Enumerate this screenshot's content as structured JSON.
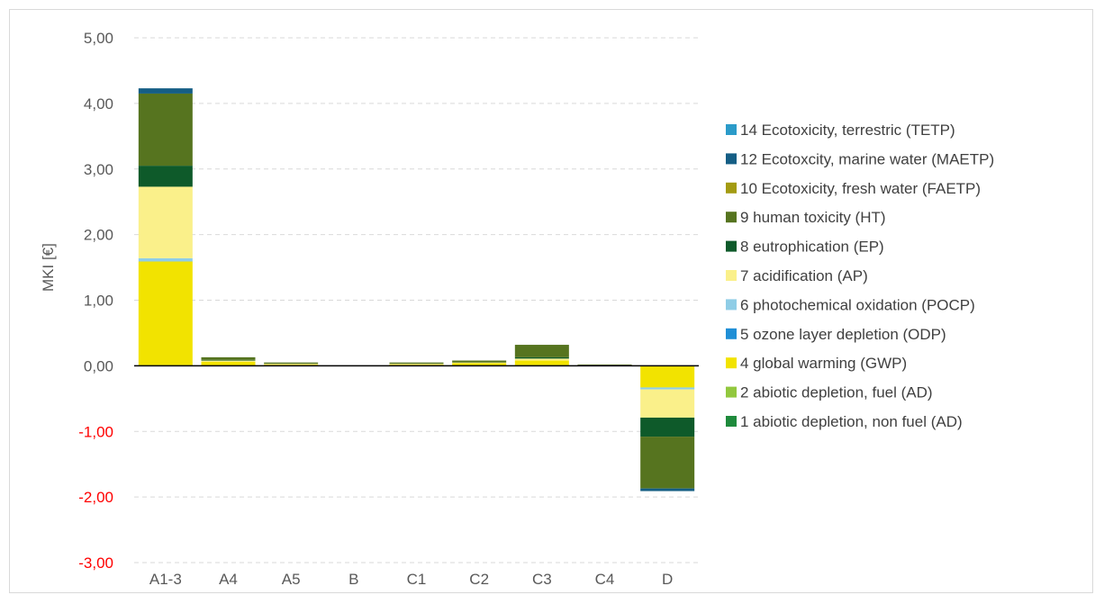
{
  "chart_data": {
    "type": "bar",
    "stacked": true,
    "ylabel": "MKI [€]",
    "ylim": [
      -3,
      5
    ],
    "yticks": [
      {
        "value": 5,
        "label": "5,00"
      },
      {
        "value": 4,
        "label": "4,00"
      },
      {
        "value": 3,
        "label": "3,00"
      },
      {
        "value": 2,
        "label": "2,00"
      },
      {
        "value": 1,
        "label": "1,00"
      },
      {
        "value": 0,
        "label": "0,00"
      },
      {
        "value": -1,
        "label": "-1,00"
      },
      {
        "value": -2,
        "label": "-2,00"
      },
      {
        "value": -3,
        "label": "-3,00"
      }
    ],
    "negative_tick_color": "#ff0000",
    "positive_tick_color": "#595959",
    "grid": "horizontal dashed",
    "legend_position": "right",
    "categories": [
      "A1-3",
      "A4",
      "A5",
      "B",
      "C1",
      "C2",
      "C3",
      "C4",
      "D"
    ],
    "series": [
      {
        "name": "1 abiotic depletion, non fuel (AD)",
        "color": "#1e8a3c",
        "values": [
          0,
          0,
          0,
          0,
          0,
          0,
          0,
          0,
          0
        ]
      },
      {
        "name": "2 abiotic depletion, fuel (AD)",
        "color": "#92c83e",
        "values": [
          0.01,
          0,
          0,
          0,
          0,
          0,
          0.01,
          0,
          0
        ]
      },
      {
        "name": "4 global warming (GWP)",
        "color": "#f2e300",
        "values": [
          1.58,
          0.06,
          0.02,
          0,
          0.02,
          0.04,
          0.07,
          0.01,
          -0.33
        ]
      },
      {
        "name": "5 ozone layer depletion (ODP)",
        "color": "#1f8fd6",
        "values": [
          0,
          0,
          0,
          0,
          0,
          0,
          0,
          0,
          0
        ]
      },
      {
        "name": "6 photochemical oxidation (POCP)",
        "color": "#8fcde6",
        "values": [
          0.05,
          0,
          0,
          0,
          0,
          0,
          0,
          0,
          -0.03
        ]
      },
      {
        "name": "7 acidification (AP)",
        "color": "#faf08a",
        "values": [
          1.09,
          0.02,
          0.01,
          0,
          0.01,
          0.01,
          0.03,
          0,
          -0.43
        ]
      },
      {
        "name": "8 eutrophication (EP)",
        "color": "#0e5a2a",
        "values": [
          0.32,
          0.01,
          0,
          0,
          0,
          0,
          0.02,
          0,
          -0.29
        ]
      },
      {
        "name": "9 human toxicity (HT)",
        "color": "#56741f",
        "values": [
          1.1,
          0.04,
          0.02,
          0,
          0.02,
          0.03,
          0.19,
          0.01,
          -0.79
        ]
      },
      {
        "name": "10 Ecotoxicity, fresh water (FAETP)",
        "color": "#a39b12",
        "values": [
          0,
          0,
          0,
          0,
          0,
          0,
          0,
          0,
          0
        ]
      },
      {
        "name": "12 Ecotoxcity, marine water (MAETP)",
        "color": "#155e85",
        "values": [
          0.08,
          0,
          0,
          0,
          0,
          0,
          0,
          0,
          -0.04
        ]
      },
      {
        "name": "14 Ecotoxicity, terrestric (TETP)",
        "color": "#2b9bc9",
        "values": [
          0,
          0,
          0,
          0,
          0,
          0,
          0,
          0,
          0
        ]
      }
    ]
  }
}
